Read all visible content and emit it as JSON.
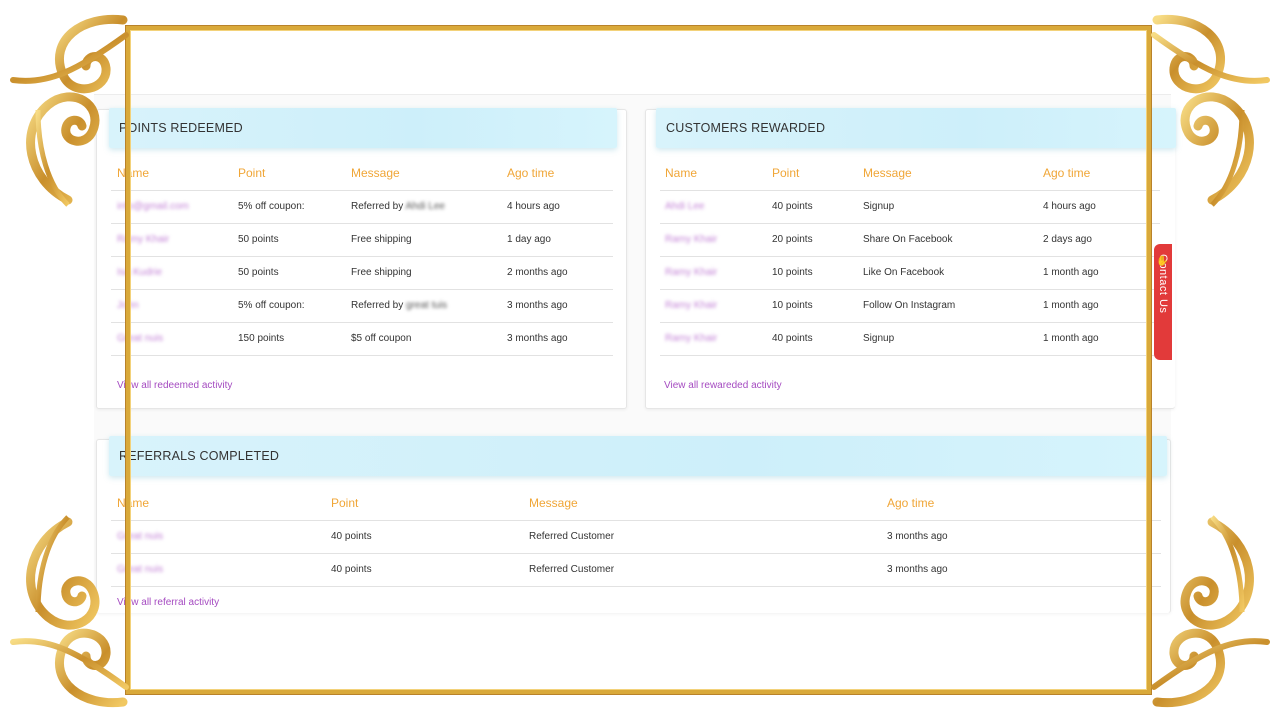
{
  "redeemed": {
    "title": "POINTS REDEEMED",
    "columns": [
      "Name",
      "Point",
      "Message",
      "Ago time"
    ],
    "rows": [
      {
        "name": "info@gmail.com",
        "point": "5% off coupon:",
        "message": "Referred by",
        "message_blur": "Ahdi Lee",
        "ago": "4 hours ago"
      },
      {
        "name": "Ramy Khair",
        "point": "50 points",
        "message": "Free shipping",
        "message_blur": "",
        "ago": "1 day ago"
      },
      {
        "name": "Isa Kudrie",
        "point": "50 points",
        "message": "Free shipping",
        "message_blur": "",
        "ago": "2 months ago"
      },
      {
        "name": "John",
        "point": "5% off coupon:",
        "message": "Referred by",
        "message_blur": "great tuis",
        "ago": "3 months ago"
      },
      {
        "name": "Great nuis",
        "point": "150 points",
        "message": "$5 off coupon",
        "message_blur": "",
        "ago": "3 months ago"
      }
    ],
    "view_all": "View all redeemed activity"
  },
  "rewarded": {
    "title": "CUSTOMERS REWARDED",
    "columns": [
      "Name",
      "Point",
      "Message",
      "Ago time"
    ],
    "rows": [
      {
        "name": "Ahdi Lee",
        "point": "40 points",
        "message": "Signup",
        "ago": "4 hours ago"
      },
      {
        "name": "Ramy Khair",
        "point": "20 points",
        "message": "Share On Facebook",
        "ago": "2 days ago"
      },
      {
        "name": "Ramy Khair",
        "point": "10 points",
        "message": "Like On Facebook",
        "ago": "1 month ago"
      },
      {
        "name": "Ramy Khair",
        "point": "10 points",
        "message": "Follow On Instagram",
        "ago": "1 month ago"
      },
      {
        "name": "Ramy Khair",
        "point": "40 points",
        "message": "Signup",
        "ago": "1 month ago"
      }
    ],
    "view_all": "View all rewareded activity"
  },
  "referrals": {
    "title": "REFERRALS COMPLETED",
    "columns": [
      "Name",
      "Point",
      "Message",
      "Ago time"
    ],
    "rows": [
      {
        "name": "Great nuis",
        "point": "40 points",
        "message": "Referred Customer",
        "ago": "3 months ago"
      },
      {
        "name": "Great nuis",
        "point": "40 points",
        "message": "Referred Customer",
        "ago": "3 months ago"
      }
    ],
    "view_all": "View all referral activity"
  },
  "contact_tab": {
    "label": "Contact Us",
    "icon": "hand-icon"
  },
  "colors": {
    "accent_orange": "#f0a637",
    "link_purple": "#a54bc1",
    "header_cyan": "#d4f2fb",
    "contact_red": "#e23a3a",
    "frame_gold": "#d9a93a"
  }
}
